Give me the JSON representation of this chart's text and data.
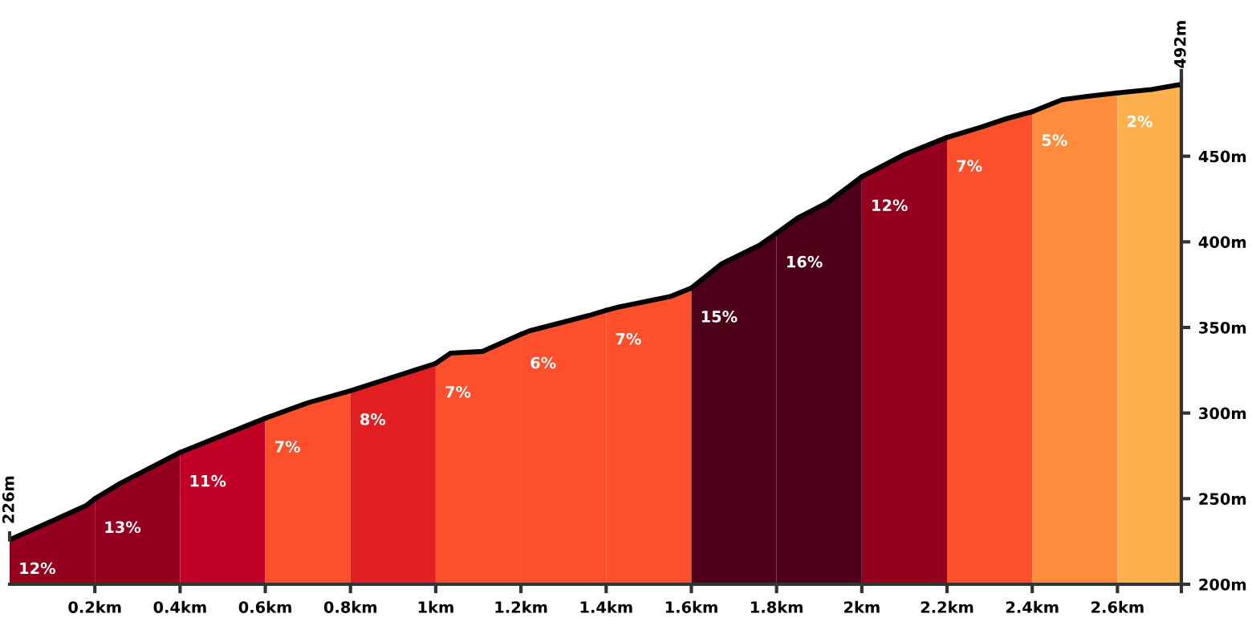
{
  "chart_data": {
    "type": "area",
    "xlim": [
      0,
      2.75
    ],
    "xticks": [
      {
        "value": 0.2,
        "label": "0.2km"
      },
      {
        "value": 0.4,
        "label": "0.4km"
      },
      {
        "value": 0.6,
        "label": "0.6km"
      },
      {
        "value": 0.8,
        "label": "0.8km"
      },
      {
        "value": 1,
        "label": "1km"
      },
      {
        "value": 1.2,
        "label": "1.2km"
      },
      {
        "value": 1.4,
        "label": "1.4km"
      },
      {
        "value": 1.6,
        "label": "1.6km"
      },
      {
        "value": 1.8,
        "label": "1.8km"
      },
      {
        "value": 2,
        "label": "2km"
      },
      {
        "value": 2.2,
        "label": "2.2km"
      },
      {
        "value": 2.4,
        "label": "2.4km"
      },
      {
        "value": 2.6,
        "label": "2.6km"
      },
      {
        "value": 2.75,
        "label": null
      }
    ],
    "ylim": [
      200,
      500
    ],
    "yticks": [
      {
        "value": 200,
        "label": "200m"
      },
      {
        "value": 250,
        "label": "250m"
      },
      {
        "value": 300,
        "label": "300m"
      },
      {
        "value": 350,
        "label": "350m"
      },
      {
        "value": 400,
        "label": "400m"
      },
      {
        "value": 450,
        "label": "450m"
      }
    ],
    "grid": false,
    "series": [
      {
        "color": "#95001f",
        "x": [
          0,
          0.1,
          0.18,
          0.2
        ],
        "values": [
          226,
          237,
          246,
          250
        ]
      },
      {
        "color": "#95001f",
        "x": [
          0.2,
          0.26,
          0.4
        ],
        "values": [
          250,
          259,
          277
        ]
      },
      {
        "color": "#c00026",
        "x": [
          0.4,
          0.5,
          0.6
        ],
        "values": [
          277,
          287,
          297
        ]
      },
      {
        "color": "#fd4f2b",
        "x": [
          0.6,
          0.7,
          0.8
        ],
        "values": [
          297,
          306,
          313
        ]
      },
      {
        "color": "#e21f20",
        "x": [
          0.8,
          0.975,
          1.0
        ],
        "values": [
          313,
          327,
          329
        ]
      },
      {
        "color": "#fd4f2b",
        "x": [
          1.0,
          1.035,
          1.11,
          1.2
        ],
        "values": [
          329,
          335,
          336,
          346
        ]
      },
      {
        "color": "#fd4f2b",
        "x": [
          1.2,
          1.22,
          1.36,
          1.4
        ],
        "values": [
          346,
          348,
          357,
          360
        ]
      },
      {
        "color": "#fd4f2b",
        "x": [
          1.4,
          1.43,
          1.55,
          1.6
        ],
        "values": [
          360,
          362,
          368,
          373
        ]
      },
      {
        "color": "#4d0018",
        "x": [
          1.6,
          1.67,
          1.76,
          1.8
        ],
        "values": [
          373,
          387,
          398,
          405
        ]
      },
      {
        "color": "#4d0018",
        "x": [
          1.8,
          1.85,
          1.92,
          2.0
        ],
        "values": [
          405,
          414,
          423,
          438
        ]
      },
      {
        "color": "#95001f",
        "x": [
          2.0,
          2.1,
          2.2
        ],
        "values": [
          438,
          451,
          461
        ]
      },
      {
        "color": "#fd4f2b",
        "x": [
          2.2,
          2.28,
          2.34,
          2.4
        ],
        "values": [
          461,
          467,
          472,
          476
        ]
      },
      {
        "color": "#fe8c3c",
        "x": [
          2.4,
          2.47,
          2.53,
          2.6
        ],
        "values": [
          476,
          483,
          485,
          487
        ]
      },
      {
        "color": "#feb04c",
        "x": [
          2.6,
          2.68,
          2.75
        ],
        "values": [
          487,
          489,
          492
        ]
      }
    ],
    "annotations": [
      "12%",
      "13%",
      "11%",
      "7%",
      "8%",
      "7%",
      "6%",
      "7%",
      "15%",
      "16%",
      "12%",
      "7%",
      "5%",
      "2%",
      {
        "text": "226m",
        "x": 0,
        "y": 226
      },
      {
        "text": "492m",
        "x": 2.75,
        "y": 492
      }
    ]
  }
}
